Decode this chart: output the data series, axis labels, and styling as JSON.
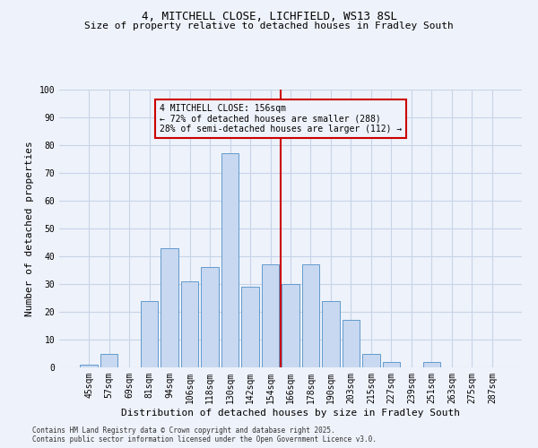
{
  "title1": "4, MITCHELL CLOSE, LICHFIELD, WS13 8SL",
  "title2": "Size of property relative to detached houses in Fradley South",
  "xlabel": "Distribution of detached houses by size in Fradley South",
  "ylabel": "Number of detached properties",
  "categories": [
    "45sqm",
    "57sqm",
    "69sqm",
    "81sqm",
    "94sqm",
    "106sqm",
    "118sqm",
    "130sqm",
    "142sqm",
    "154sqm",
    "166sqm",
    "178sqm",
    "190sqm",
    "203sqm",
    "215sqm",
    "227sqm",
    "239sqm",
    "251sqm",
    "263sqm",
    "275sqm",
    "287sqm"
  ],
  "values": [
    1,
    5,
    0,
    24,
    43,
    31,
    36,
    77,
    29,
    37,
    30,
    37,
    24,
    17,
    5,
    2,
    0,
    2,
    0,
    0,
    0
  ],
  "bar_color": "#c8d8f0",
  "bar_edge_color": "#5090c8",
  "vline_color": "#cc0000",
  "ylim": [
    0,
    100
  ],
  "yticks": [
    0,
    10,
    20,
    30,
    40,
    50,
    60,
    70,
    80,
    90,
    100
  ],
  "grid_color": "#c8d4e8",
  "background_color": "#eef2fa",
  "annotation_text": "4 MITCHELL CLOSE: 156sqm\n← 72% of detached houses are smaller (288)\n28% of semi-detached houses are larger (112) →",
  "footnote1": "Contains HM Land Registry data © Crown copyright and database right 2025.",
  "footnote2": "Contains public sector information licensed under the Open Government Licence v3.0.",
  "title1_fontsize": 9,
  "title2_fontsize": 8,
  "tick_fontsize": 7,
  "label_fontsize": 8,
  "annot_fontsize": 7,
  "footnote_fontsize": 5.5
}
